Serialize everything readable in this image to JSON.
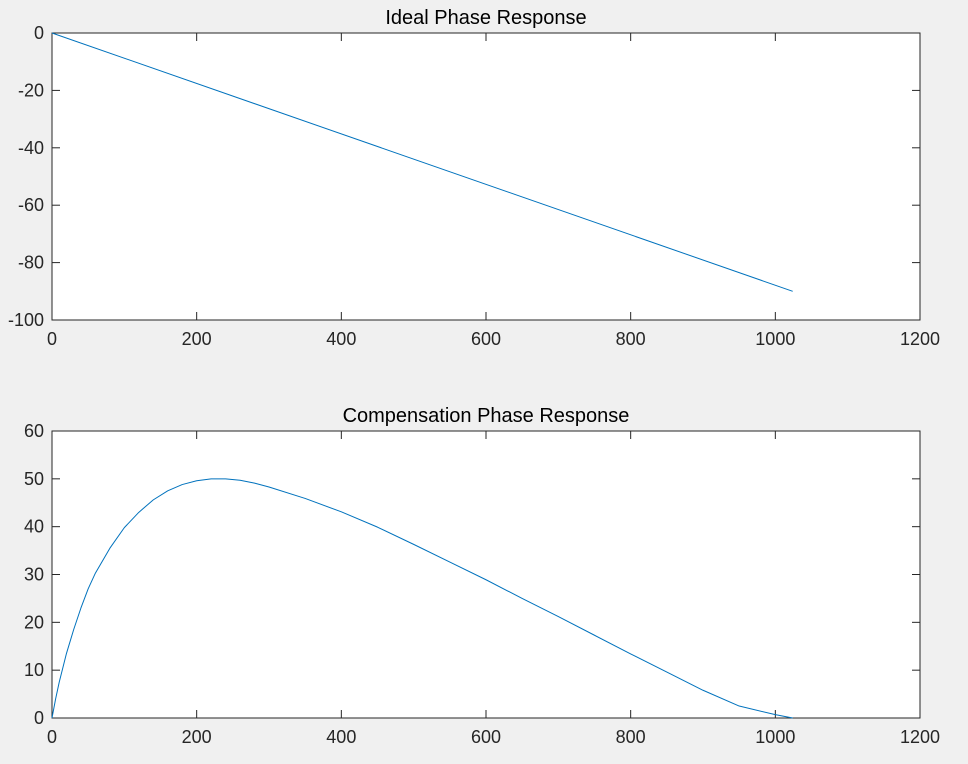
{
  "figure": {
    "background": "#f0f0f0",
    "axes_background": "#ffffff",
    "axis_color": "#262626",
    "line_color": "#0072bd"
  },
  "chart_data": [
    {
      "type": "line",
      "title": "Ideal Phase Response",
      "xlabel": "",
      "ylabel": "",
      "xlim": [
        0,
        1200
      ],
      "ylim": [
        -100,
        0
      ],
      "xticks": [
        0,
        200,
        400,
        600,
        800,
        1000,
        1200
      ],
      "yticks": [
        -100,
        -80,
        -60,
        -40,
        -20,
        0
      ],
      "xtick_labels": [
        "0",
        "200",
        "400",
        "600",
        "800",
        "1000",
        "1200"
      ],
      "ytick_labels": [
        "-100",
        "-80",
        "-60",
        "-40",
        "-20",
        "0"
      ],
      "grid": false,
      "series": [
        {
          "x": [
            0,
            1024
          ],
          "y": [
            0,
            -90
          ]
        }
      ]
    },
    {
      "type": "line",
      "title": "Compensation Phase Response",
      "xlabel": "",
      "ylabel": "",
      "xlim": [
        0,
        1200
      ],
      "ylim": [
        0,
        60
      ],
      "xticks": [
        0,
        200,
        400,
        600,
        800,
        1000,
        1200
      ],
      "yticks": [
        0,
        10,
        20,
        30,
        40,
        50,
        60
      ],
      "xtick_labels": [
        "0",
        "200",
        "400",
        "600",
        "800",
        "1000",
        "1200"
      ],
      "ytick_labels": [
        "0",
        "10",
        "20",
        "30",
        "40",
        "50",
        "60"
      ],
      "grid": false,
      "series": [
        {
          "x": [
            0,
            5,
            10,
            20,
            30,
            40,
            50,
            60,
            80,
            100,
            120,
            140,
            160,
            180,
            200,
            220,
            230,
            240,
            260,
            280,
            300,
            350,
            400,
            450,
            500,
            550,
            600,
            650,
            700,
            750,
            800,
            850,
            900,
            950,
            1000,
            1024
          ],
          "y": [
            0,
            4,
            7.5,
            13.5,
            18.5,
            23,
            27,
            30.3,
            35.5,
            39.8,
            43,
            45.6,
            47.5,
            48.8,
            49.6,
            50,
            50,
            50,
            49.7,
            49.1,
            48.3,
            45.9,
            43.1,
            39.9,
            36.3,
            32.6,
            28.9,
            25,
            21.2,
            17.3,
            13.4,
            9.6,
            5.8,
            2.5,
            0.7,
            0
          ]
        }
      ]
    }
  ]
}
